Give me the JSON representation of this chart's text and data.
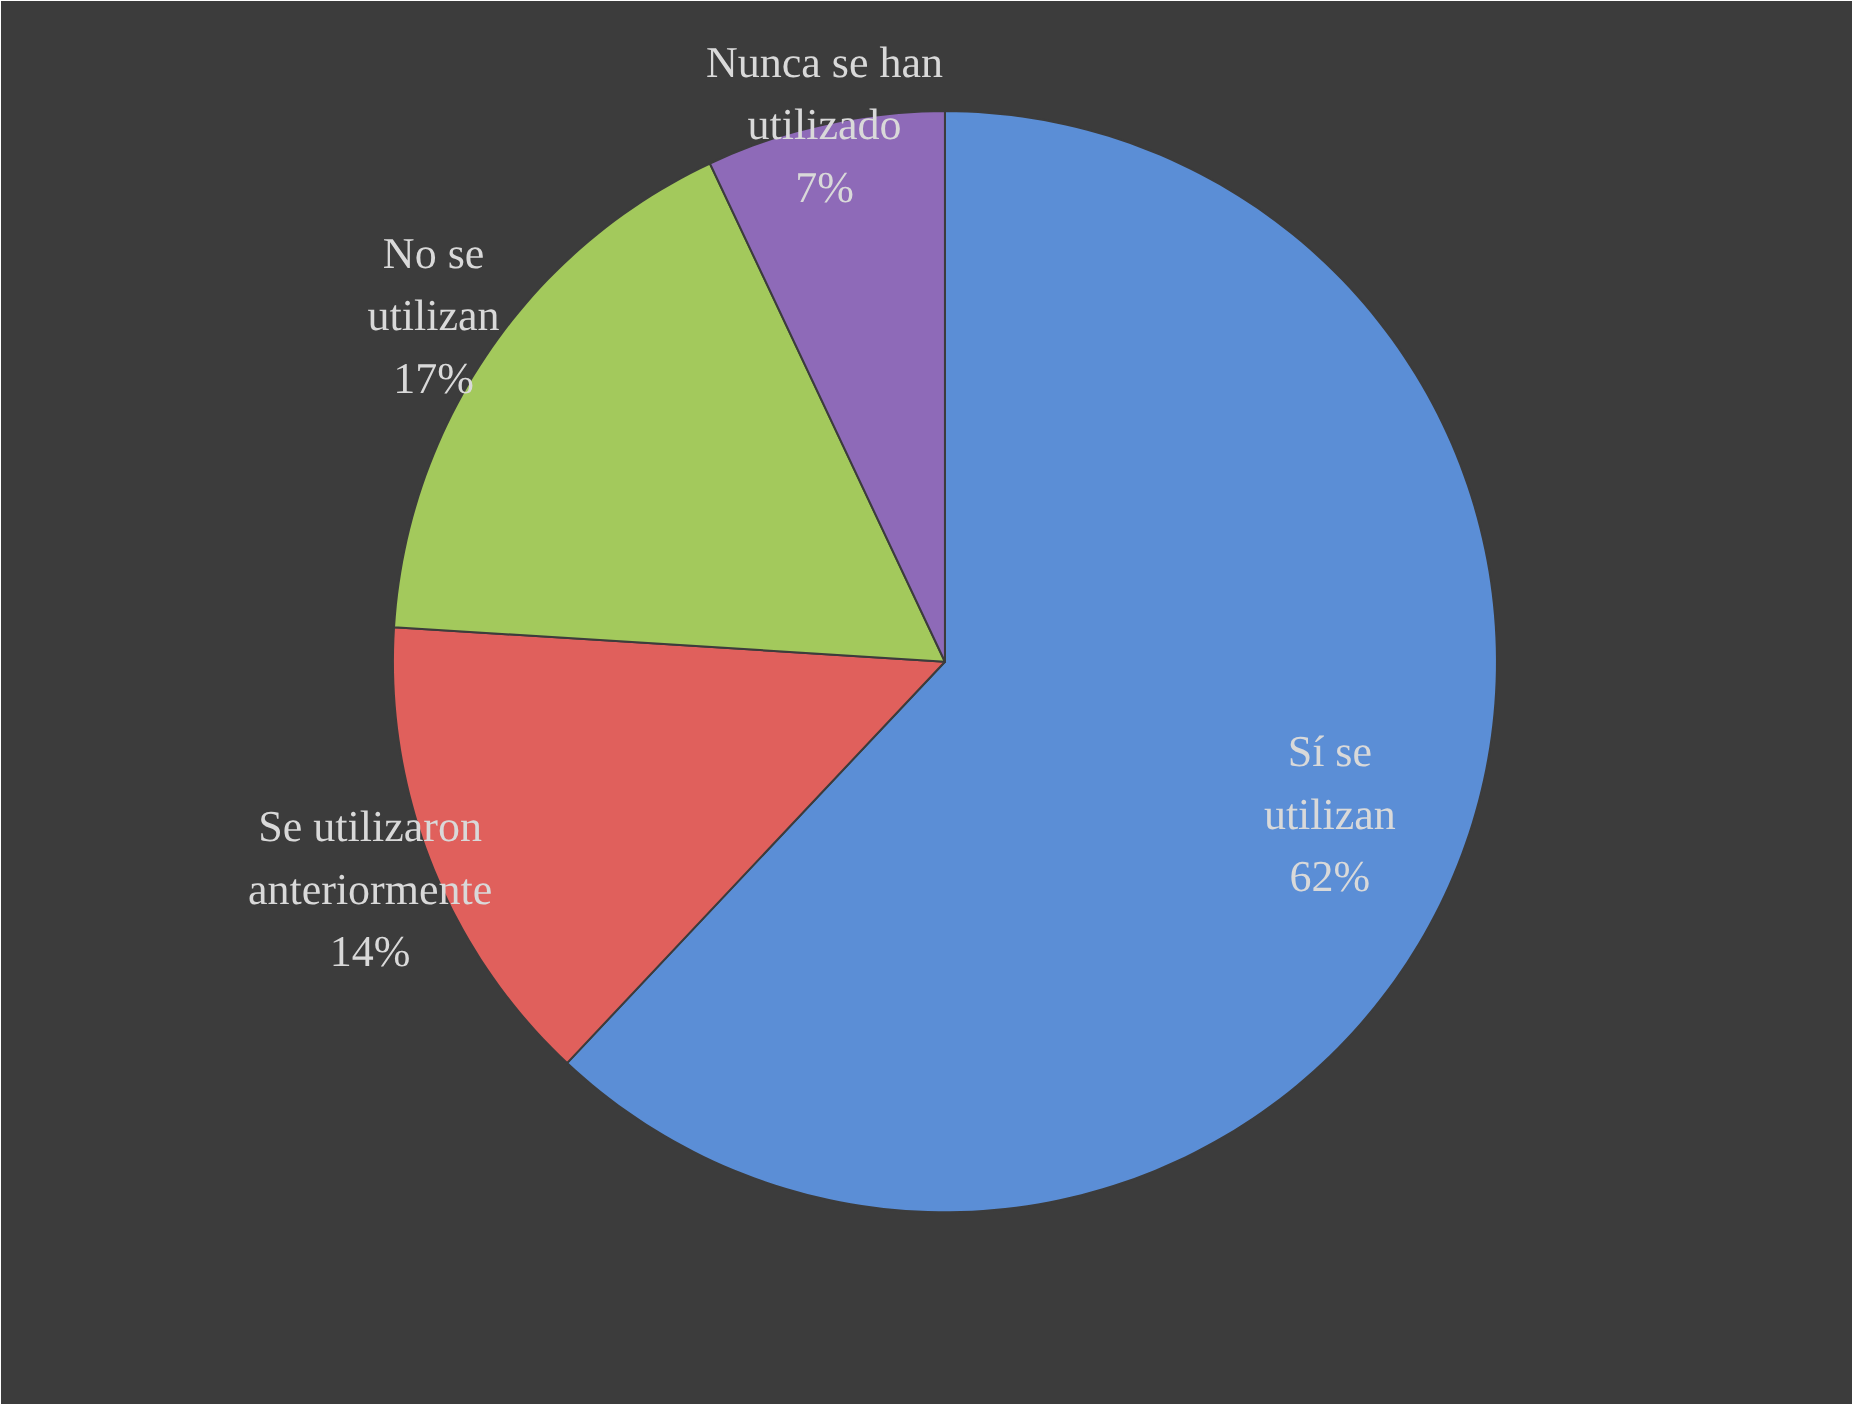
{
  "chart_data": {
    "type": "pie",
    "categories": [
      "Sí se utilizan",
      "Se utilizaron anteriormente",
      "No se utilizan",
      "Nunca se han utilizado"
    ],
    "values": [
      62,
      14,
      17,
      7
    ],
    "value_labels": [
      "62%",
      "14%",
      "17%",
      "7%"
    ],
    "colors": [
      "#5b8ed6",
      "#e0605c",
      "#a3c95c",
      "#8e6ab8"
    ]
  }
}
